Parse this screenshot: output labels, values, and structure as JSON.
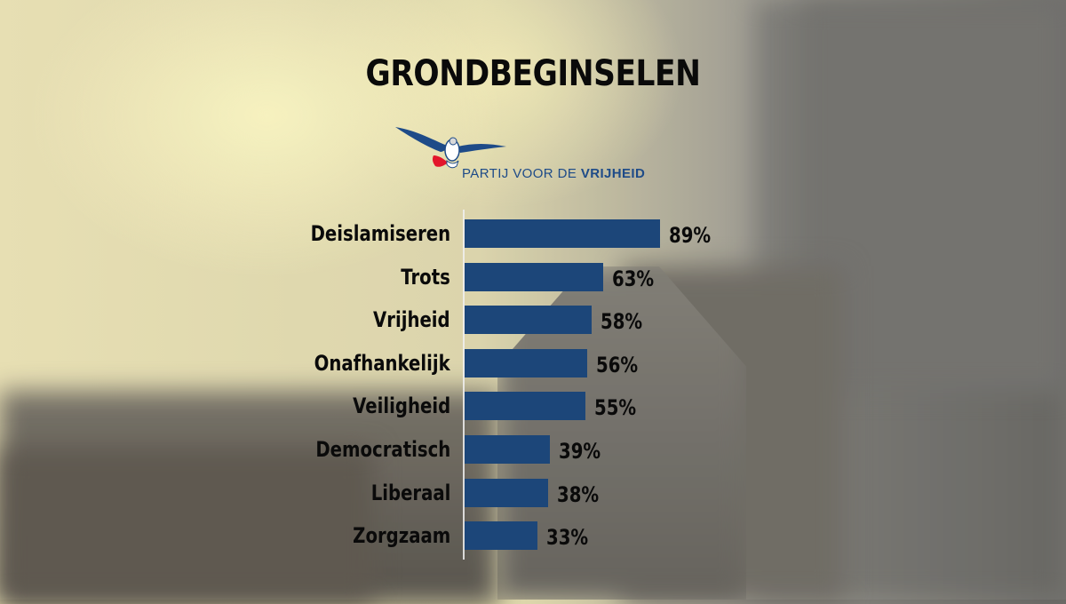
{
  "title": "GRONDBEGINSELEN",
  "logo": {
    "text_regular": "PARTIJ VOOR DE ",
    "text_bold": "VRIJHEID"
  },
  "colors": {
    "bar": "#1c4679",
    "logo_blue": "#1e4b88",
    "logo_red": "#e3162b"
  },
  "chart_data": {
    "type": "bar",
    "orientation": "horizontal",
    "title": "GRONDBEGINSELEN",
    "categories": [
      "Deislamiseren",
      "Trots",
      "Vrijheid",
      "Onafhankelijk",
      "Veiligheid",
      "Democratisch",
      "Liberaal",
      "Zorgzaam"
    ],
    "values": [
      89,
      63,
      58,
      56,
      55,
      39,
      38,
      33
    ],
    "value_labels": [
      "89%",
      "63%",
      "58%",
      "56%",
      "55%",
      "39%",
      "38%",
      "33%"
    ],
    "xlim": [
      0,
      100
    ],
    "grid": false,
    "legend": "none"
  }
}
